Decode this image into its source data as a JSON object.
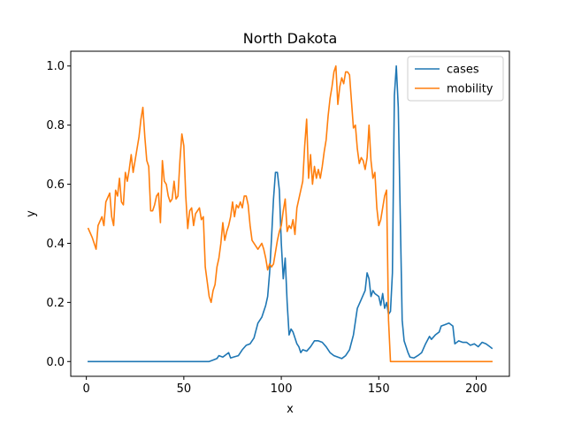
{
  "chart_data": {
    "type": "line",
    "title": "North Dakota",
    "xlabel": "x",
    "ylabel": "y",
    "xlim": [
      -8,
      217
    ],
    "ylim": [
      -0.05,
      1.05
    ],
    "xticks": [
      0,
      50,
      100,
      150,
      200
    ],
    "yticks": [
      0.0,
      0.2,
      0.4,
      0.6,
      0.8,
      1.0
    ],
    "xtick_labels": [
      "0",
      "50",
      "100",
      "150",
      "200"
    ],
    "ytick_labels": [
      "0.0",
      "0.2",
      "0.4",
      "0.6",
      "0.8",
      "1.0"
    ],
    "grid": false,
    "legend_position": "top-right",
    "series": [
      {
        "name": "cases",
        "color": "#1f77b4",
        "points": [
          [
            1,
            0.0
          ],
          [
            10,
            0.0
          ],
          [
            20,
            0.0
          ],
          [
            30,
            0.0
          ],
          [
            40,
            0.0
          ],
          [
            50,
            0.0
          ],
          [
            60,
            0.0
          ],
          [
            63,
            0.0
          ],
          [
            65,
            0.005
          ],
          [
            67,
            0.01
          ],
          [
            68,
            0.02
          ],
          [
            70,
            0.015
          ],
          [
            72,
            0.025
          ],
          [
            73,
            0.03
          ],
          [
            74,
            0.012
          ],
          [
            76,
            0.016
          ],
          [
            78,
            0.02
          ],
          [
            80,
            0.04
          ],
          [
            82,
            0.055
          ],
          [
            84,
            0.06
          ],
          [
            86,
            0.08
          ],
          [
            88,
            0.13
          ],
          [
            90,
            0.15
          ],
          [
            92,
            0.19
          ],
          [
            93,
            0.22
          ],
          [
            94,
            0.3
          ],
          [
            95,
            0.42
          ],
          [
            96,
            0.55
          ],
          [
            97,
            0.64
          ],
          [
            98,
            0.64
          ],
          [
            99,
            0.58
          ],
          [
            100,
            0.4
          ],
          [
            101,
            0.28
          ],
          [
            102,
            0.35
          ],
          [
            103,
            0.2
          ],
          [
            104,
            0.09
          ],
          [
            105,
            0.11
          ],
          [
            106,
            0.1
          ],
          [
            107,
            0.08
          ],
          [
            108,
            0.06
          ],
          [
            109,
            0.05
          ],
          [
            110,
            0.03
          ],
          [
            111,
            0.04
          ],
          [
            113,
            0.035
          ],
          [
            115,
            0.05
          ],
          [
            117,
            0.07
          ],
          [
            119,
            0.07
          ],
          [
            121,
            0.065
          ],
          [
            123,
            0.05
          ],
          [
            125,
            0.03
          ],
          [
            127,
            0.02
          ],
          [
            129,
            0.015
          ],
          [
            131,
            0.01
          ],
          [
            133,
            0.02
          ],
          [
            135,
            0.04
          ],
          [
            137,
            0.09
          ],
          [
            139,
            0.18
          ],
          [
            141,
            0.21
          ],
          [
            143,
            0.24
          ],
          [
            144,
            0.3
          ],
          [
            145,
            0.28
          ],
          [
            146,
            0.22
          ],
          [
            147,
            0.24
          ],
          [
            148,
            0.23
          ],
          [
            150,
            0.22
          ],
          [
            151,
            0.19
          ],
          [
            152,
            0.23
          ],
          [
            153,
            0.18
          ],
          [
            154,
            0.2
          ],
          [
            155,
            0.16
          ],
          [
            156,
            0.17
          ],
          [
            157,
            0.3
          ],
          [
            158,
            0.9
          ],
          [
            159,
            1.0
          ],
          [
            160,
            0.86
          ],
          [
            161,
            0.5
          ],
          [
            162,
            0.14
          ],
          [
            163,
            0.07
          ],
          [
            164,
            0.05
          ],
          [
            165,
            0.03
          ],
          [
            166,
            0.015
          ],
          [
            168,
            0.012
          ],
          [
            170,
            0.02
          ],
          [
            172,
            0.03
          ],
          [
            174,
            0.06
          ],
          [
            176,
            0.085
          ],
          [
            177,
            0.075
          ],
          [
            179,
            0.09
          ],
          [
            181,
            0.1
          ],
          [
            182,
            0.12
          ],
          [
            184,
            0.125
          ],
          [
            186,
            0.13
          ],
          [
            188,
            0.12
          ],
          [
            189,
            0.06
          ],
          [
            191,
            0.07
          ],
          [
            193,
            0.065
          ],
          [
            195,
            0.065
          ],
          [
            197,
            0.055
          ],
          [
            199,
            0.06
          ],
          [
            201,
            0.05
          ],
          [
            203,
            0.065
          ],
          [
            205,
            0.06
          ],
          [
            207,
            0.05
          ],
          [
            208,
            0.045
          ]
        ]
      },
      {
        "name": "mobility",
        "color": "#ff7f0e",
        "points": [
          [
            1,
            0.45
          ],
          [
            3,
            0.42
          ],
          [
            5,
            0.38
          ],
          [
            6,
            0.46
          ],
          [
            8,
            0.49
          ],
          [
            9,
            0.46
          ],
          [
            10,
            0.54
          ],
          [
            12,
            0.57
          ],
          [
            13,
            0.49
          ],
          [
            14,
            0.46
          ],
          [
            15,
            0.58
          ],
          [
            16,
            0.56
          ],
          [
            17,
            0.62
          ],
          [
            18,
            0.54
          ],
          [
            19,
            0.53
          ],
          [
            20,
            0.64
          ],
          [
            21,
            0.61
          ],
          [
            22,
            0.65
          ],
          [
            23,
            0.7
          ],
          [
            24,
            0.64
          ],
          [
            25,
            0.68
          ],
          [
            26,
            0.72
          ],
          [
            27,
            0.76
          ],
          [
            28,
            0.82
          ],
          [
            29,
            0.86
          ],
          [
            30,
            0.76
          ],
          [
            31,
            0.68
          ],
          [
            32,
            0.66
          ],
          [
            33,
            0.51
          ],
          [
            34,
            0.51
          ],
          [
            35,
            0.53
          ],
          [
            36,
            0.56
          ],
          [
            37,
            0.57
          ],
          [
            38,
            0.47
          ],
          [
            39,
            0.68
          ],
          [
            40,
            0.61
          ],
          [
            41,
            0.6
          ],
          [
            42,
            0.56
          ],
          [
            43,
            0.54
          ],
          [
            44,
            0.55
          ],
          [
            45,
            0.61
          ],
          [
            46,
            0.55
          ],
          [
            47,
            0.56
          ],
          [
            48,
            0.68
          ],
          [
            49,
            0.77
          ],
          [
            50,
            0.73
          ],
          [
            51,
            0.56
          ],
          [
            52,
            0.45
          ],
          [
            53,
            0.51
          ],
          [
            54,
            0.52
          ],
          [
            55,
            0.46
          ],
          [
            56,
            0.5
          ],
          [
            57,
            0.51
          ],
          [
            58,
            0.52
          ],
          [
            59,
            0.48
          ],
          [
            60,
            0.49
          ],
          [
            61,
            0.32
          ],
          [
            62,
            0.27
          ],
          [
            63,
            0.22
          ],
          [
            64,
            0.2
          ],
          [
            65,
            0.24
          ],
          [
            66,
            0.26
          ],
          [
            67,
            0.32
          ],
          [
            68,
            0.35
          ],
          [
            69,
            0.4
          ],
          [
            70,
            0.47
          ],
          [
            71,
            0.41
          ],
          [
            72,
            0.44
          ],
          [
            73,
            0.46
          ],
          [
            74,
            0.49
          ],
          [
            75,
            0.54
          ],
          [
            76,
            0.49
          ],
          [
            77,
            0.53
          ],
          [
            78,
            0.52
          ],
          [
            79,
            0.54
          ],
          [
            80,
            0.52
          ],
          [
            81,
            0.56
          ],
          [
            82,
            0.56
          ],
          [
            83,
            0.53
          ],
          [
            84,
            0.46
          ],
          [
            85,
            0.41
          ],
          [
            86,
            0.4
          ],
          [
            87,
            0.39
          ],
          [
            88,
            0.38
          ],
          [
            89,
            0.39
          ],
          [
            90,
            0.4
          ],
          [
            91,
            0.38
          ],
          [
            92,
            0.35
          ],
          [
            93,
            0.31
          ],
          [
            94,
            0.33
          ],
          [
            95,
            0.32
          ],
          [
            96,
            0.33
          ],
          [
            97,
            0.37
          ],
          [
            98,
            0.41
          ],
          [
            99,
            0.44
          ],
          [
            100,
            0.46
          ],
          [
            101,
            0.51
          ],
          [
            102,
            0.55
          ],
          [
            103,
            0.44
          ],
          [
            104,
            0.46
          ],
          [
            105,
            0.45
          ],
          [
            106,
            0.48
          ],
          [
            107,
            0.43
          ],
          [
            108,
            0.52
          ],
          [
            109,
            0.55
          ],
          [
            110,
            0.58
          ],
          [
            111,
            0.61
          ],
          [
            112,
            0.73
          ],
          [
            113,
            0.82
          ],
          [
            114,
            0.62
          ],
          [
            115,
            0.7
          ],
          [
            116,
            0.6
          ],
          [
            117,
            0.66
          ],
          [
            118,
            0.62
          ],
          [
            119,
            0.65
          ],
          [
            120,
            0.62
          ],
          [
            121,
            0.66
          ],
          [
            122,
            0.71
          ],
          [
            123,
            0.75
          ],
          [
            124,
            0.83
          ],
          [
            125,
            0.89
          ],
          [
            126,
            0.93
          ],
          [
            127,
            0.98
          ],
          [
            128,
            1.0
          ],
          [
            129,
            0.87
          ],
          [
            130,
            0.93
          ],
          [
            131,
            0.96
          ],
          [
            132,
            0.94
          ],
          [
            133,
            0.98
          ],
          [
            134,
            0.98
          ],
          [
            135,
            0.97
          ],
          [
            136,
            0.88
          ],
          [
            137,
            0.79
          ],
          [
            138,
            0.8
          ],
          [
            139,
            0.72
          ],
          [
            140,
            0.67
          ],
          [
            141,
            0.69
          ],
          [
            142,
            0.68
          ],
          [
            143,
            0.65
          ],
          [
            144,
            0.69
          ],
          [
            145,
            0.8
          ],
          [
            146,
            0.68
          ],
          [
            147,
            0.62
          ],
          [
            148,
            0.64
          ],
          [
            149,
            0.52
          ],
          [
            150,
            0.46
          ],
          [
            151,
            0.48
          ],
          [
            152,
            0.52
          ],
          [
            153,
            0.56
          ],
          [
            154,
            0.58
          ],
          [
            155,
            0.14
          ],
          [
            156,
            0.0
          ],
          [
            170,
            0.0
          ],
          [
            180,
            0.0
          ],
          [
            190,
            0.0
          ],
          [
            200,
            0.0
          ],
          [
            208,
            0.0
          ]
        ]
      }
    ]
  }
}
